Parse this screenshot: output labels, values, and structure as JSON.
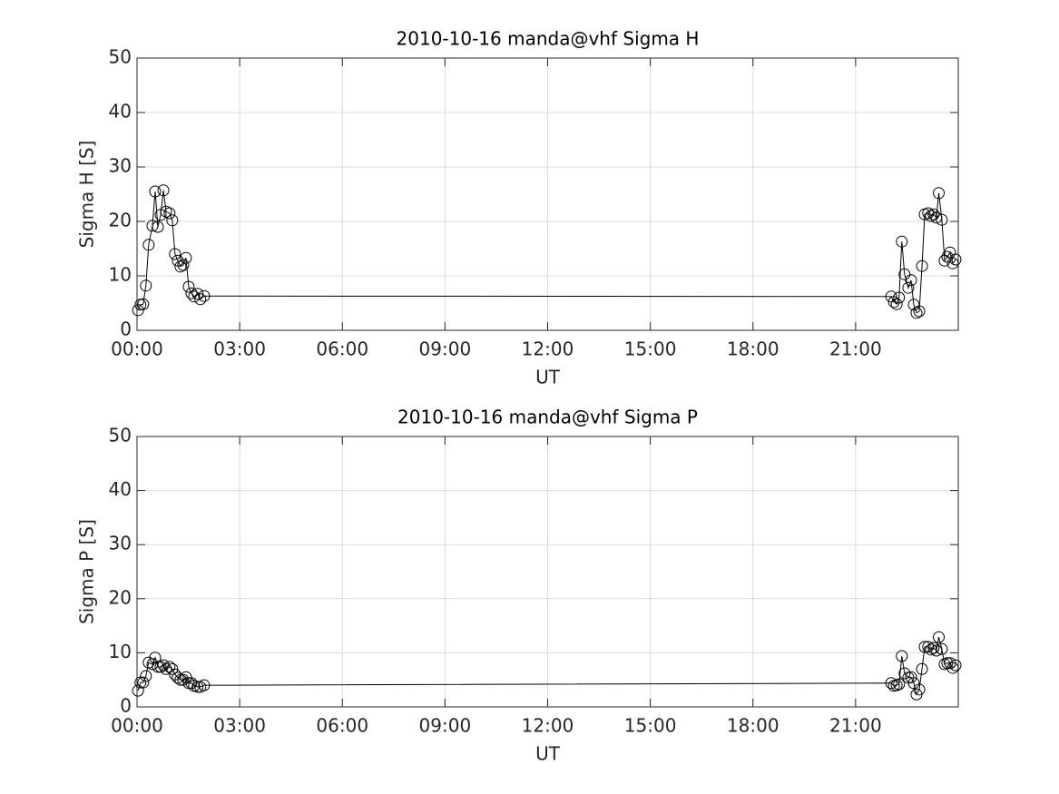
{
  "chart_data": [
    {
      "type": "line",
      "title": "2010-10-16  manda@vhf Sigma H",
      "xlabel": "UT",
      "ylabel": "Sigma H [S]",
      "x": [
        0.03,
        0.1,
        0.18,
        0.26,
        0.34,
        0.45,
        0.53,
        0.61,
        0.69,
        0.77,
        0.85,
        0.95,
        1.03,
        1.11,
        1.19,
        1.27,
        1.35,
        1.43,
        1.51,
        1.59,
        1.67,
        1.77,
        1.85,
        1.96,
        22.04,
        22.12,
        22.2,
        22.27,
        22.35,
        22.43,
        22.54,
        22.62,
        22.7,
        22.78,
        22.86,
        22.94,
        23.02,
        23.12,
        23.2,
        23.28,
        23.36,
        23.43,
        23.52,
        23.6,
        23.68,
        23.76,
        23.84,
        23.92
      ],
      "series": [
        {
          "color": "#000000",
          "marker": "circle",
          "values": [
            3.7,
            4.7,
            4.8,
            8.2,
            15.7,
            19.2,
            25.5,
            19,
            21.2,
            25.7,
            21.8,
            21.5,
            20.2,
            14,
            12.8,
            11.7,
            12,
            13.3,
            8,
            6.8,
            6.2,
            6.7,
            5.7,
            6.3,
            6.2,
            5.2,
            4.8,
            6,
            16.3,
            10.3,
            7.8,
            9.2,
            4.7,
            3.2,
            3.5,
            11.8,
            21.3,
            21.5,
            21,
            21.3,
            20.7,
            25.2,
            20.3,
            12.8,
            13.5,
            14.3,
            12.3,
            13
          ]
        }
      ],
      "xlim": [
        0,
        24
      ],
      "ylim": [
        0,
        50
      ],
      "xticks": [
        {
          "value": 0,
          "label": "00:00"
        },
        {
          "value": 3,
          "label": "03:00"
        },
        {
          "value": 6,
          "label": "06:00"
        },
        {
          "value": 9,
          "label": "09:00"
        },
        {
          "value": 12,
          "label": "12:00"
        },
        {
          "value": 15,
          "label": "15:00"
        },
        {
          "value": 18,
          "label": "18:00"
        },
        {
          "value": 21,
          "label": "21:00"
        }
      ],
      "yticks": [
        0,
        10,
        20,
        30,
        40,
        50
      ],
      "grid": true
    },
    {
      "type": "line",
      "title": "2010-10-16  manda@vhf Sigma P",
      "xlabel": "UT",
      "ylabel": "Sigma P [S]",
      "x": [
        0.03,
        0.1,
        0.18,
        0.26,
        0.34,
        0.45,
        0.53,
        0.61,
        0.69,
        0.77,
        0.85,
        0.95,
        1.03,
        1.11,
        1.19,
        1.27,
        1.35,
        1.43,
        1.51,
        1.59,
        1.67,
        1.77,
        1.85,
        1.96,
        22.04,
        22.12,
        22.2,
        22.27,
        22.35,
        22.43,
        22.54,
        22.62,
        22.7,
        22.78,
        22.86,
        22.94,
        23.02,
        23.12,
        23.2,
        23.28,
        23.36,
        23.43,
        23.52,
        23.6,
        23.68,
        23.76,
        23.84,
        23.92
      ],
      "series": [
        {
          "color": "#000000",
          "marker": "circle",
          "values": [
            3,
            4.5,
            4.5,
            5.7,
            8.2,
            7.9,
            9.1,
            7.4,
            7.4,
            7.7,
            7,
            7.4,
            7,
            6,
            5.4,
            5,
            5,
            5.5,
            4.4,
            4.4,
            3.9,
            3.7,
            3.7,
            4,
            4.4,
            3.9,
            4,
            4.2,
            9.4,
            6.2,
            5.4,
            5.5,
            4.4,
            2.3,
            3.2,
            7,
            11.1,
            11.1,
            10.6,
            10.9,
            10.4,
            12.9,
            10.7,
            7.9,
            8.1,
            8.1,
            7.2,
            7.7
          ]
        }
      ],
      "xlim": [
        0,
        24
      ],
      "ylim": [
        0,
        50
      ],
      "xticks": [
        {
          "value": 0,
          "label": "00:00"
        },
        {
          "value": 3,
          "label": "03:00"
        },
        {
          "value": 6,
          "label": "06:00"
        },
        {
          "value": 9,
          "label": "09:00"
        },
        {
          "value": 12,
          "label": "12:00"
        },
        {
          "value": 15,
          "label": "15:00"
        },
        {
          "value": 18,
          "label": "18:00"
        },
        {
          "value": 21,
          "label": "21:00"
        }
      ],
      "yticks": [
        0,
        10,
        20,
        30,
        40,
        50
      ],
      "grid": true
    }
  ]
}
